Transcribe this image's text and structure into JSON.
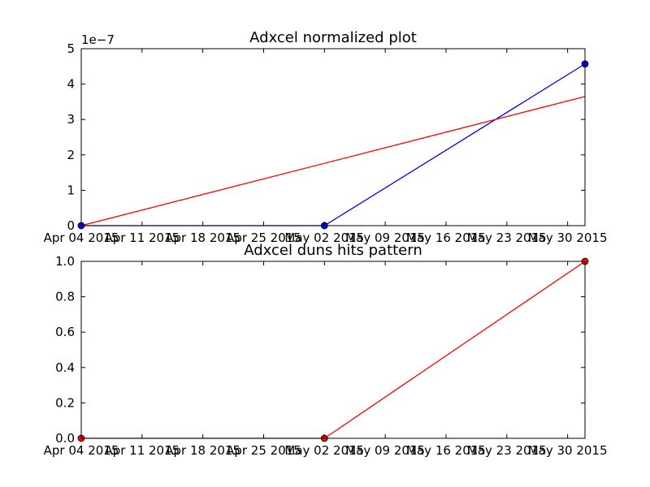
{
  "chart_data": [
    {
      "type": "line",
      "title": "Adxcel normalized plot",
      "xlabel": "",
      "ylabel": "",
      "offset_text": "1e−7",
      "x_ticks": [
        "Apr 04 2015",
        "Apr 11 2015",
        "Apr 18 2015",
        "Apr 25 2015",
        "May 02 2015",
        "May 09 2015",
        "May 16 2015",
        "May 23 2015",
        "May 30 2015"
      ],
      "y_ticks": [
        "0",
        "1",
        "2",
        "3",
        "4",
        "5"
      ],
      "ylim": [
        0,
        5e-07
      ],
      "xlim": [
        "2015-04-04",
        "2015-06-01"
      ],
      "grid": false,
      "series": [
        {
          "color": "#0000ff",
          "marker": "circle",
          "points": [
            {
              "x": "2015-04-04",
              "y": 0
            },
            {
              "x": "2015-05-02",
              "y": 0
            },
            {
              "x": "2015-06-01",
              "y": 4.57e-07
            }
          ]
        },
        {
          "color": "#ff0000",
          "marker": "none",
          "points": [
            {
              "x": "2015-04-04",
              "y": 0
            },
            {
              "x": "2015-06-01",
              "y": 3.65e-07
            }
          ]
        }
      ]
    },
    {
      "type": "line",
      "title": "Adxcel duns hits pattern",
      "xlabel": "",
      "ylabel": "",
      "x_ticks": [
        "Apr 04 2015",
        "Apr 11 2015",
        "Apr 18 2015",
        "Apr 25 2015",
        "May 02 2015",
        "May 09 2015",
        "May 16 2015",
        "May 23 2015",
        "May 30 2015"
      ],
      "y_ticks": [
        "0.0",
        "0.2",
        "0.4",
        "0.6",
        "0.8",
        "1.0"
      ],
      "ylim": [
        0,
        1
      ],
      "xlim": [
        "2015-04-04",
        "2015-06-01"
      ],
      "grid": false,
      "series": [
        {
          "color": "#ff0000",
          "marker": "circle",
          "points": [
            {
              "x": "2015-04-04",
              "y": 0
            },
            {
              "x": "2015-05-02",
              "y": 0
            },
            {
              "x": "2015-06-01",
              "y": 1
            }
          ]
        }
      ]
    }
  ]
}
